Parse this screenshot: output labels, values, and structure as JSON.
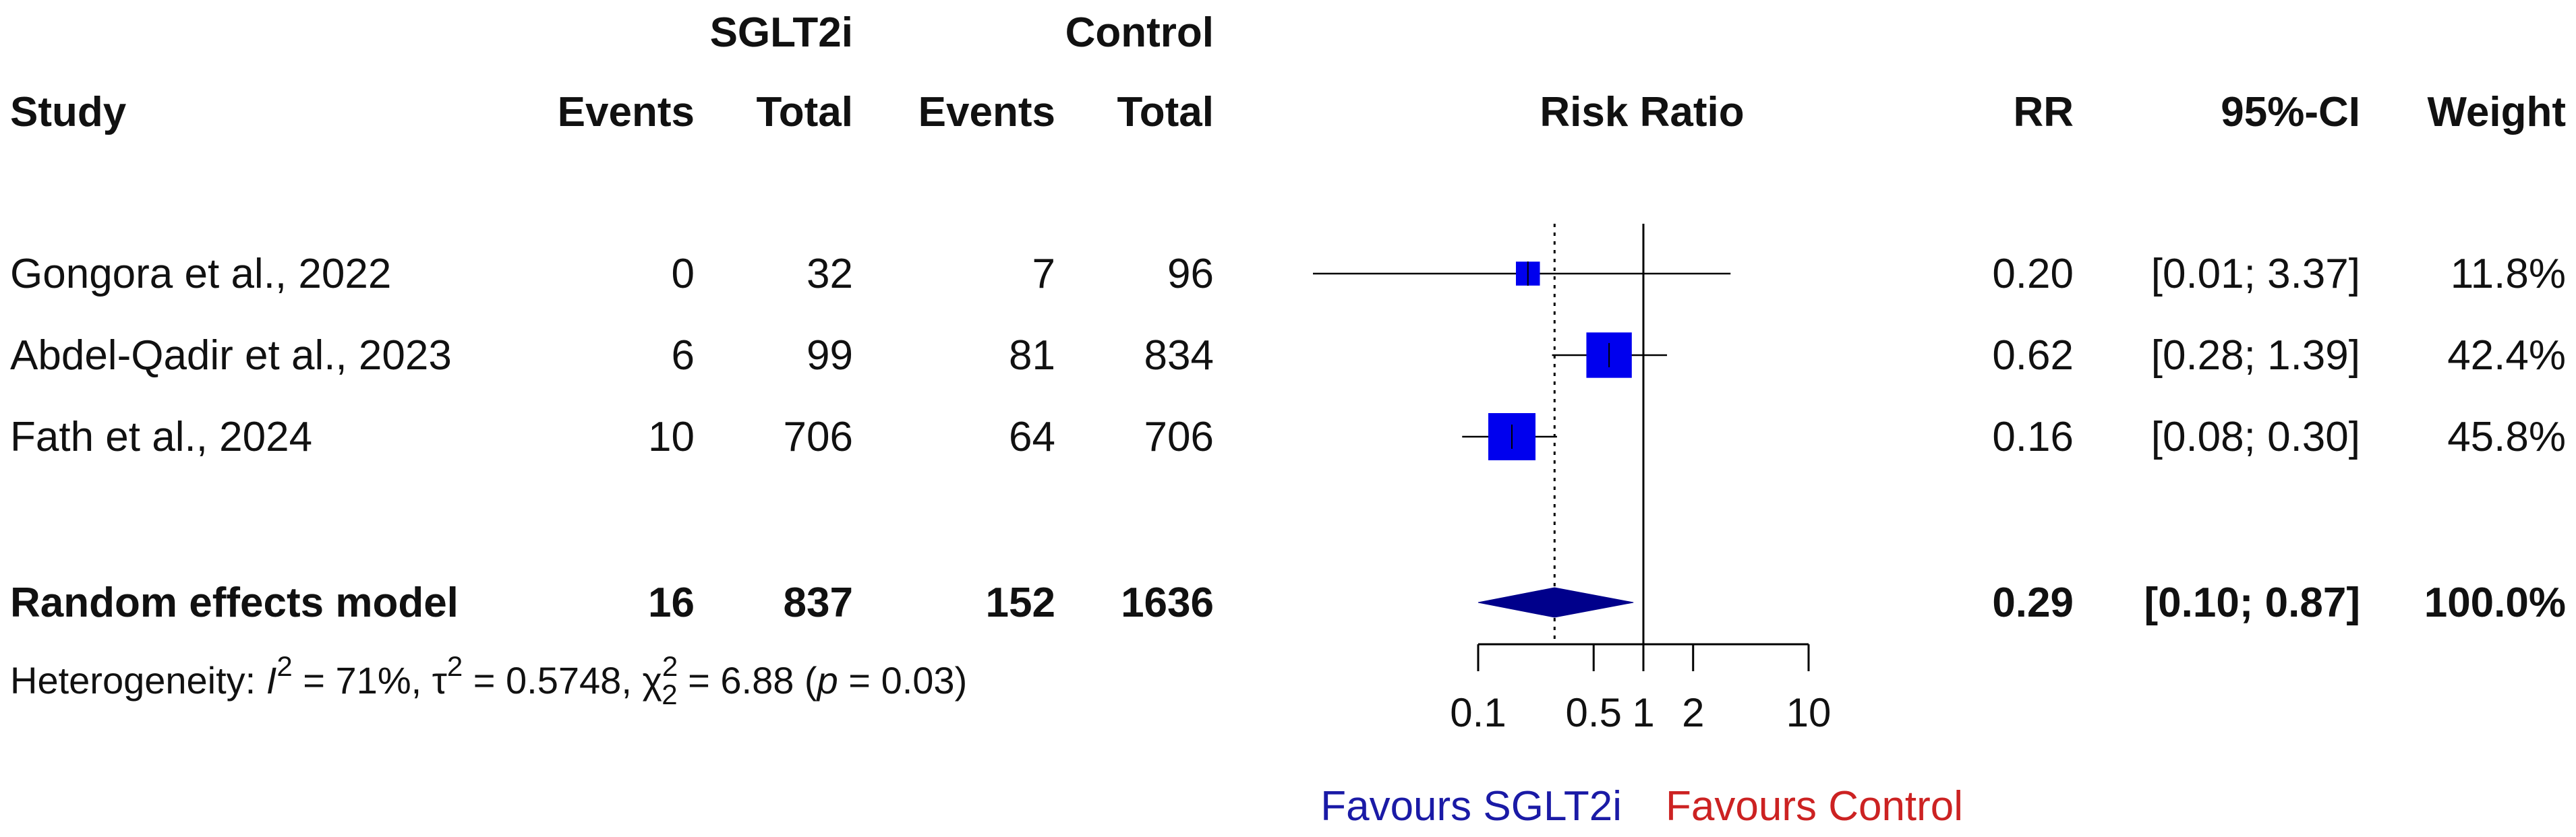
{
  "header": {
    "group1": "SGLT2i",
    "group2": "Control",
    "study": "Study",
    "events1": "Events",
    "total1": "Total",
    "events2": "Events",
    "total2": "Total",
    "risk_ratio": "Risk Ratio",
    "rr": "RR",
    "ci": "95%-CI",
    "weight": "Weight"
  },
  "studies": [
    {
      "name": "Gongora et al., 2022",
      "events1": "0",
      "total1": "32",
      "events2": "7",
      "total2": "96",
      "rr": "0.20",
      "ci": "[0.01; 3.37]",
      "weight": "11.8%"
    },
    {
      "name": "Abdel-Qadir et al., 2023",
      "events1": "6",
      "total1": "99",
      "events2": "81",
      "total2": "834",
      "rr": "0.62",
      "ci": "[0.28; 1.39]",
      "weight": "42.4%"
    },
    {
      "name": "Fath et al., 2024",
      "events1": "10",
      "total1": "706",
      "events2": "64",
      "total2": "706",
      "rr": "0.16",
      "ci": "[0.08; 0.30]",
      "weight": "45.8%"
    }
  ],
  "pooled": {
    "name": "Random effects model",
    "events1": "16",
    "total1": "837",
    "events2": "152",
    "total2": "1636",
    "rr": "0.29",
    "ci": "[0.10; 0.87]",
    "weight": "100.0%"
  },
  "heterogeneity": {
    "prefix": "Heterogeneity: ",
    "i_symbol": "I",
    "i_sup": "2",
    "i_value": " = 71%, ",
    "tau_symbol": "τ",
    "tau_sup": "2",
    "tau_value": " = 0.5748, ",
    "chi_symbol": "χ",
    "chi_sup": "2",
    "chi_sub": "2",
    "chi_value": " = 6.88 (",
    "p_symbol": "p",
    "p_value": " = 0.03)"
  },
  "axis_labels": {
    "favours_left": "Favours SGLT2i",
    "favours_right": "Favours Control"
  },
  "colors": {
    "square": "#0000ee",
    "diamond": "#00008b",
    "favours_left": "#1a1aa6",
    "favours_right": "#cc2222"
  },
  "chart_data": {
    "type": "forest",
    "scale": "log",
    "xlim": [
      0.1,
      10
    ],
    "ticks": [
      0.1,
      0.5,
      1,
      2,
      10
    ],
    "tick_labels": [
      "0.1",
      "0.5",
      "1",
      "2",
      "10"
    ],
    "null_value": 1,
    "studies": [
      {
        "name": "Gongora et al., 2022",
        "rr": 0.2,
        "lower": 0.01,
        "upper": 3.37,
        "weight": 11.8
      },
      {
        "name": "Abdel-Qadir et al., 2023",
        "rr": 0.62,
        "lower": 0.28,
        "upper": 1.39,
        "weight": 42.4
      },
      {
        "name": "Fath et al., 2024",
        "rr": 0.16,
        "lower": 0.08,
        "upper": 0.3,
        "weight": 45.8
      }
    ],
    "pooled": {
      "name": "Random effects model",
      "rr": 0.29,
      "lower": 0.1,
      "upper": 0.87
    }
  }
}
